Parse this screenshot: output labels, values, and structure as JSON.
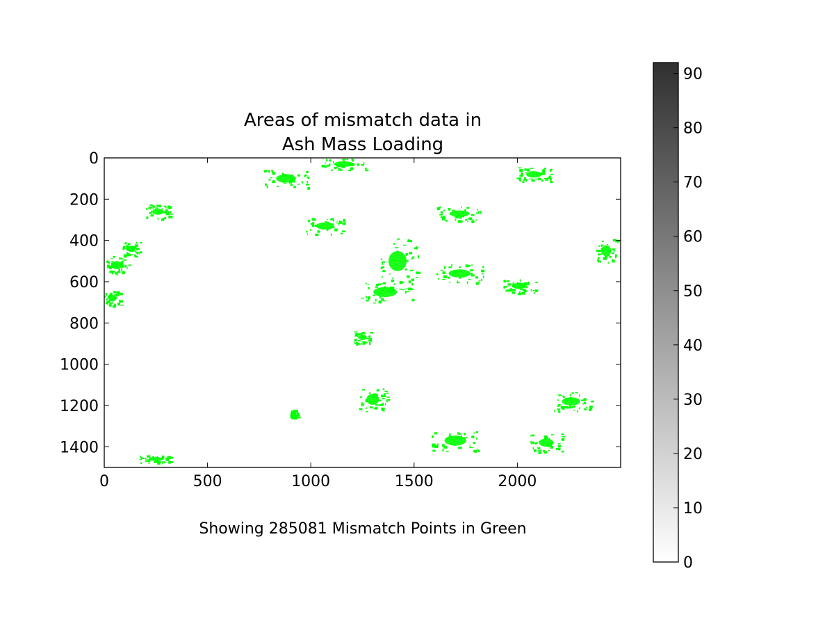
{
  "chart_data": {
    "type": "heatmap",
    "title": [
      "Areas of mismatch data in",
      "Ash Mass Loading"
    ],
    "xlabel": "Showing 285081 Mismatch Points in Green",
    "ylabel": "",
    "xlim": [
      0,
      2500
    ],
    "ylim": [
      1500,
      0
    ],
    "y_axis_inverted": true,
    "x_ticks": [
      0,
      500,
      1000,
      1500,
      2000
    ],
    "y_ticks": [
      0,
      200,
      400,
      600,
      800,
      1000,
      1200,
      1400
    ],
    "grid": false,
    "mismatch_count": 285081,
    "mismatch_color": "#00ff00",
    "background_color": "#ffffff",
    "mismatch_regions": [
      {
        "x": 60,
        "y": 520,
        "w": 120,
        "h": 90
      },
      {
        "x": 130,
        "y": 440,
        "w": 90,
        "h": 70
      },
      {
        "x": 260,
        "y": 260,
        "w": 120,
        "h": 70
      },
      {
        "x": 40,
        "y": 680,
        "w": 80,
        "h": 70
      },
      {
        "x": 250,
        "y": 1460,
        "w": 160,
        "h": 40
      },
      {
        "x": 880,
        "y": 100,
        "w": 220,
        "h": 90
      },
      {
        "x": 1160,
        "y": 30,
        "w": 220,
        "h": 60
      },
      {
        "x": 1070,
        "y": 330,
        "w": 200,
        "h": 80
      },
      {
        "x": 1420,
        "y": 500,
        "w": 200,
        "h": 220
      },
      {
        "x": 1360,
        "y": 650,
        "w": 260,
        "h": 110
      },
      {
        "x": 1720,
        "y": 560,
        "w": 240,
        "h": 90
      },
      {
        "x": 2010,
        "y": 620,
        "w": 160,
        "h": 70
      },
      {
        "x": 2430,
        "y": 450,
        "w": 110,
        "h": 120
      },
      {
        "x": 1720,
        "y": 270,
        "w": 220,
        "h": 70
      },
      {
        "x": 2080,
        "y": 80,
        "w": 170,
        "h": 70
      },
      {
        "x": 1300,
        "y": 1170,
        "w": 140,
        "h": 120
      },
      {
        "x": 1700,
        "y": 1370,
        "w": 240,
        "h": 110
      },
      {
        "x": 2140,
        "y": 1380,
        "w": 160,
        "h": 90
      },
      {
        "x": 2260,
        "y": 1180,
        "w": 200,
        "h": 90
      },
      {
        "x": 1250,
        "y": 870,
        "w": 90,
        "h": 60
      },
      {
        "x": 920,
        "y": 1240,
        "w": 40,
        "h": 40
      }
    ]
  },
  "colorbar": {
    "min": 0,
    "max": 92,
    "ticks": [
      0,
      10,
      20,
      30,
      40,
      50,
      60,
      70,
      80,
      90
    ],
    "color_low": "#ffffff",
    "color_high": "#303030"
  }
}
